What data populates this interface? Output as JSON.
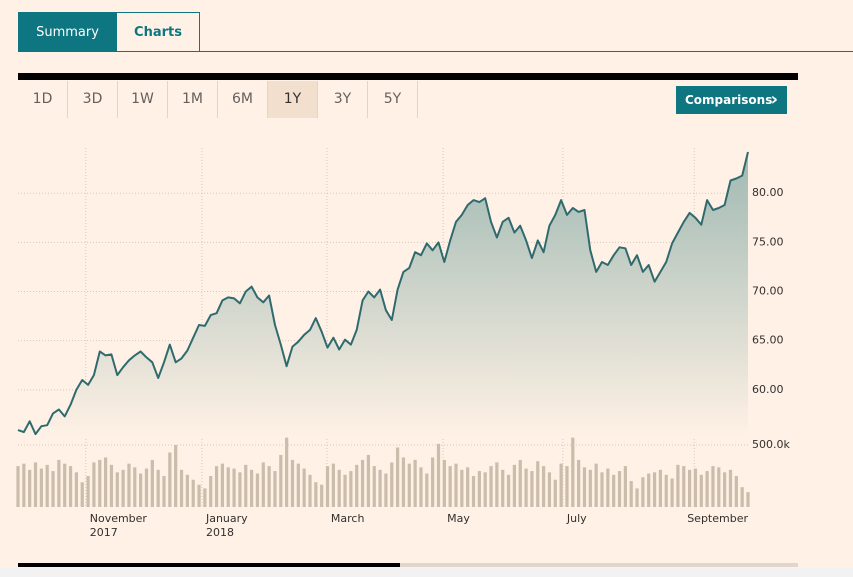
{
  "tabs": [
    "Summary",
    "Charts"
  ],
  "active_tab": "Summary",
  "ranges": [
    "1D",
    "3D",
    "1W",
    "1M",
    "6M",
    "1Y",
    "3Y",
    "5Y"
  ],
  "active_range": "1Y",
  "comparisons_button": "Comparisons",
  "chart_data": {
    "type": "line",
    "color": "#2f6b6e",
    "grid": true,
    "xlim": [
      0,
      125
    ],
    "xticks": [
      {
        "value": 11.6,
        "label": "November",
        "sublabel": "2017"
      },
      {
        "value": 31.5,
        "label": "January",
        "sublabel": "2018"
      },
      {
        "value": 52.9,
        "label": "March"
      },
      {
        "value": 72.8,
        "label": "May"
      },
      {
        "value": 93.3,
        "label": "July"
      },
      {
        "value": 115.8,
        "label": "September"
      }
    ],
    "ylim": [
      55.2,
      84.4
    ],
    "yticks": [
      {
        "value": 60,
        "label": "60.00"
      },
      {
        "value": 65,
        "label": "65.00"
      },
      {
        "value": 70,
        "label": "70.00"
      },
      {
        "value": 75,
        "label": "75.00"
      },
      {
        "value": 80,
        "label": "80.00"
      }
    ],
    "values": [
      55.9,
      55.7,
      56.8,
      55.5,
      56.3,
      56.4,
      57.6,
      58.0,
      57.3,
      58.5,
      60.0,
      61.0,
      60.5,
      61.5,
      63.9,
      63.5,
      63.6,
      61.5,
      62.3,
      63.0,
      63.5,
      63.9,
      63.3,
      62.8,
      61.2,
      62.8,
      64.6,
      62.8,
      63.2,
      64.0,
      65.3,
      66.6,
      66.5,
      67.6,
      67.8,
      69.1,
      69.4,
      69.3,
      68.8,
      70.0,
      70.5,
      69.4,
      68.9,
      69.6,
      66.6,
      64.6,
      62.4,
      64.4,
      64.9,
      65.6,
      66.1,
      67.3,
      65.9,
      64.3,
      65.3,
      64.1,
      65.1,
      64.6,
      66.1,
      69.1,
      70.0,
      69.4,
      70.2,
      68.1,
      67.1,
      70.2,
      72.0,
      72.4,
      74.0,
      73.7,
      74.9,
      74.2,
      75.0,
      73.0,
      75.2,
      77.1,
      77.8,
      78.8,
      79.3,
      79.1,
      79.5,
      77.1,
      75.5,
      77.1,
      77.5,
      76.0,
      76.7,
      75.2,
      73.4,
      75.2,
      74.0,
      76.7,
      77.8,
      79.3,
      77.8,
      78.5,
      78.1,
      78.3,
      74.2,
      72.0,
      73.0,
      72.7,
      73.7,
      74.5,
      74.4,
      72.7,
      73.7,
      72.0,
      72.7,
      71.0,
      72.0,
      73.0,
      74.9,
      76.0,
      77.1,
      78.0,
      77.5,
      76.8,
      79.3,
      78.3,
      78.5,
      78.8,
      81.3,
      81.5,
      81.8,
      84.2
    ],
    "volume": {
      "color": "#cbbcab",
      "ylim": [
        0,
        565000
      ],
      "yticks": [
        {
          "value": 500000,
          "label": "500.0k"
        }
      ],
      "values": [
        330000,
        350000,
        300000,
        360000,
        310000,
        340000,
        290000,
        380000,
        350000,
        330000,
        280000,
        200000,
        250000,
        360000,
        380000,
        400000,
        340000,
        280000,
        300000,
        350000,
        320000,
        270000,
        310000,
        380000,
        300000,
        250000,
        440000,
        500000,
        300000,
        260000,
        220000,
        180000,
        150000,
        250000,
        330000,
        350000,
        320000,
        310000,
        280000,
        340000,
        300000,
        270000,
        360000,
        330000,
        290000,
        420000,
        560000,
        380000,
        350000,
        310000,
        260000,
        200000,
        180000,
        330000,
        350000,
        300000,
        260000,
        290000,
        340000,
        380000,
        420000,
        330000,
        300000,
        270000,
        360000,
        480000,
        400000,
        350000,
        380000,
        320000,
        270000,
        400000,
        510000,
        380000,
        330000,
        350000,
        300000,
        320000,
        250000,
        290000,
        280000,
        330000,
        360000,
        300000,
        260000,
        340000,
        380000,
        310000,
        290000,
        370000,
        330000,
        280000,
        220000,
        350000,
        330000,
        560000,
        380000,
        320000,
        300000,
        350000,
        280000,
        310000,
        260000,
        290000,
        330000,
        210000,
        150000,
        240000,
        270000,
        280000,
        300000,
        260000,
        230000,
        340000,
        330000,
        300000,
        310000,
        260000,
        290000,
        330000,
        320000,
        280000,
        300000,
        250000,
        160000,
        120000
      ]
    }
  }
}
